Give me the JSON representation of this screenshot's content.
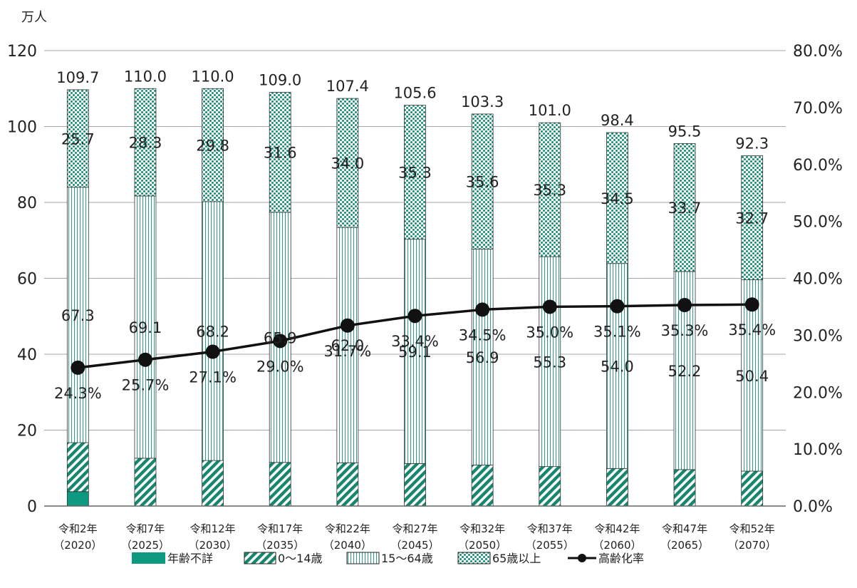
{
  "chart_data": {
    "type": "bar",
    "y_unit": "万人",
    "ylim": [
      0,
      120
    ],
    "y_ticks": [
      "0",
      "20",
      "40",
      "60",
      "80",
      "100",
      "120"
    ],
    "y2lim": [
      0,
      80
    ],
    "y2_ticks": [
      "0.0%",
      "10.0%",
      "20.0%",
      "30.0%",
      "40.0%",
      "50.0%",
      "60.0%",
      "70.0%",
      "80.0%"
    ],
    "categories": [
      {
        "era": "令和2年",
        "year": "（2020）"
      },
      {
        "era": "令和7年",
        "year": "（2025）"
      },
      {
        "era": "令和12年",
        "year": "（2030）"
      },
      {
        "era": "令和17年",
        "year": "（2035）"
      },
      {
        "era": "令和22年",
        "year": "（2040）"
      },
      {
        "era": "令和27年",
        "year": "（2045）"
      },
      {
        "era": "令和32年",
        "year": "（2050）"
      },
      {
        "era": "令和37年",
        "year": "（2055）"
      },
      {
        "era": "令和42年",
        "year": "（2060）"
      },
      {
        "era": "令和47年",
        "year": "（2065）"
      },
      {
        "era": "令和52年",
        "year": "（2070）"
      }
    ],
    "series": [
      {
        "name": "年齢不詳",
        "values": [
          3.8,
          0,
          0,
          0,
          0,
          0,
          0,
          0,
          0,
          0,
          0
        ],
        "labels": [
          "",
          "",
          "",
          "",
          "",
          "",
          "",
          "",
          "",
          "",
          ""
        ]
      },
      {
        "name": "0～14歳",
        "values": [
          12.9,
          12.6,
          12.0,
          11.5,
          11.4,
          11.2,
          10.8,
          10.4,
          9.9,
          9.6,
          9.2
        ],
        "labels": [
          "",
          "",
          "",
          "",
          "",
          "",
          "",
          "",
          "",
          "",
          ""
        ]
      },
      {
        "name": "15～64歳",
        "values": [
          67.3,
          69.1,
          68.2,
          65.9,
          62.0,
          59.1,
          56.9,
          55.3,
          54.0,
          52.2,
          50.4
        ],
        "labels": [
          "67.3",
          "69.1",
          "68.2",
          "65.9",
          "62.0",
          "59.1",
          "56.9",
          "55.3",
          "54.0",
          "52.2",
          "50.4"
        ]
      },
      {
        "name": "65歳以上",
        "values": [
          25.7,
          28.3,
          29.8,
          31.6,
          34.0,
          35.3,
          35.6,
          35.3,
          34.5,
          33.7,
          32.7
        ],
        "labels": [
          "25.7",
          "28.3",
          "29.8",
          "31.6",
          "34.0",
          "35.3",
          "35.6",
          "35.3",
          "34.5",
          "33.7",
          "32.7"
        ]
      }
    ],
    "totals": [
      "109.7",
      "110.0",
      "110.0",
      "109.0",
      "107.4",
      "105.6",
      "103.3",
      "101.0",
      "98.4",
      "95.5",
      "92.3"
    ],
    "line": {
      "name": "高齢化率",
      "axis": "right",
      "values": [
        24.3,
        25.7,
        27.1,
        29.0,
        31.7,
        33.4,
        34.5,
        35.0,
        35.1,
        35.3,
        35.4
      ],
      "labels": [
        "24.3%",
        "25.7%",
        "27.1%",
        "29.0%",
        "31.7%",
        "33.4%",
        "34.5%",
        "35.0%",
        "35.1%",
        "35.3%",
        "35.4%"
      ]
    },
    "colors": {
      "unknown": "#0e9a80",
      "young": "#17866f",
      "working": "#2f9b86",
      "elderly": "#138c74",
      "line": "#111111"
    },
    "grid": true,
    "legend_position": "bottom"
  }
}
